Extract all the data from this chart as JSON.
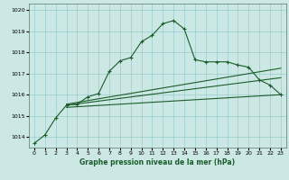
{
  "title": "Graphe pression niveau de la mer (hPa)",
  "bg_color": "#cce8e4",
  "grid_color": "#99cccc",
  "line_color": "#1a5c2a",
  "xlim": [
    -0.5,
    23.5
  ],
  "ylim": [
    1013.5,
    1020.3
  ],
  "yticks": [
    1014,
    1015,
    1016,
    1017,
    1018,
    1019,
    1020
  ],
  "xticks": [
    0,
    1,
    2,
    3,
    4,
    5,
    6,
    7,
    8,
    9,
    10,
    11,
    12,
    13,
    14,
    15,
    16,
    17,
    18,
    19,
    20,
    21,
    22,
    23
  ],
  "main_line": [
    [
      0,
      1013.7
    ],
    [
      1,
      1014.1
    ],
    [
      2,
      1014.9
    ],
    [
      3,
      1015.5
    ],
    [
      4,
      1015.55
    ],
    [
      5,
      1015.9
    ],
    [
      6,
      1016.05
    ],
    [
      7,
      1017.1
    ],
    [
      8,
      1017.6
    ],
    [
      9,
      1017.75
    ],
    [
      10,
      1018.5
    ],
    [
      11,
      1018.8
    ],
    [
      12,
      1019.35
    ],
    [
      13,
      1019.5
    ],
    [
      14,
      1019.1
    ],
    [
      15,
      1017.65
    ],
    [
      16,
      1017.55
    ],
    [
      17,
      1017.55
    ],
    [
      18,
      1017.55
    ],
    [
      19,
      1017.4
    ],
    [
      20,
      1017.3
    ],
    [
      21,
      1016.7
    ],
    [
      22,
      1016.45
    ],
    [
      23,
      1016.0
    ]
  ],
  "smooth_line1": [
    [
      3,
      1015.4
    ],
    [
      23,
      1016.0
    ]
  ],
  "smooth_line2": [
    [
      3,
      1015.5
    ],
    [
      23,
      1016.8
    ]
  ],
  "smooth_line3": [
    [
      3,
      1015.55
    ],
    [
      23,
      1017.25
    ]
  ]
}
